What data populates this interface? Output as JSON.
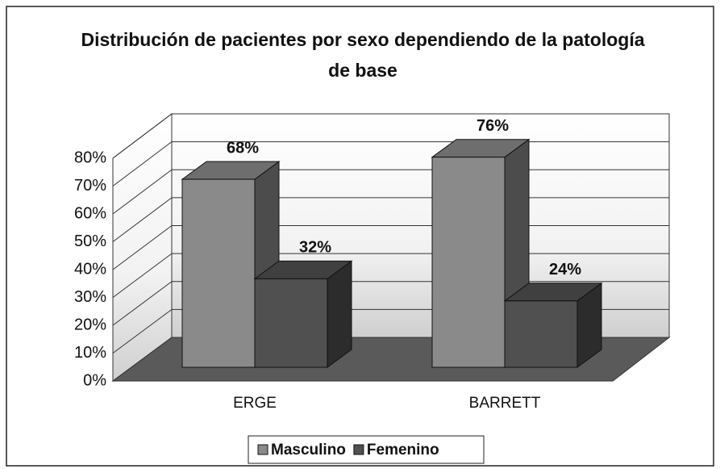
{
  "chart_data": {
    "type": "bar3d",
    "title": "Distribución de pacientes por sexo dependiendo de la patología de base",
    "categories": [
      "ERGE",
      "BARRETT"
    ],
    "series": [
      {
        "name": "Masculino",
        "color": "#8a8a8a",
        "values": [
          68,
          76
        ],
        "value_labels": [
          "68%",
          "76%"
        ]
      },
      {
        "name": "Femenino",
        "color": "#505050",
        "values": [
          32,
          24
        ],
        "value_labels": [
          "32%",
          "24%"
        ]
      }
    ],
    "ylim": [
      0,
      80
    ],
    "yticks": [
      {
        "value": 0,
        "label": "0%"
      },
      {
        "value": 10,
        "label": "10%"
      },
      {
        "value": 20,
        "label": "20%"
      },
      {
        "value": 30,
        "label": "30%"
      },
      {
        "value": 40,
        "label": "40%"
      },
      {
        "value": 50,
        "label": "50%"
      },
      {
        "value": 60,
        "label": "60%"
      },
      {
        "value": 70,
        "label": "70%"
      },
      {
        "value": 80,
        "label": "80%"
      }
    ],
    "grid": true,
    "legend": "bottom"
  }
}
